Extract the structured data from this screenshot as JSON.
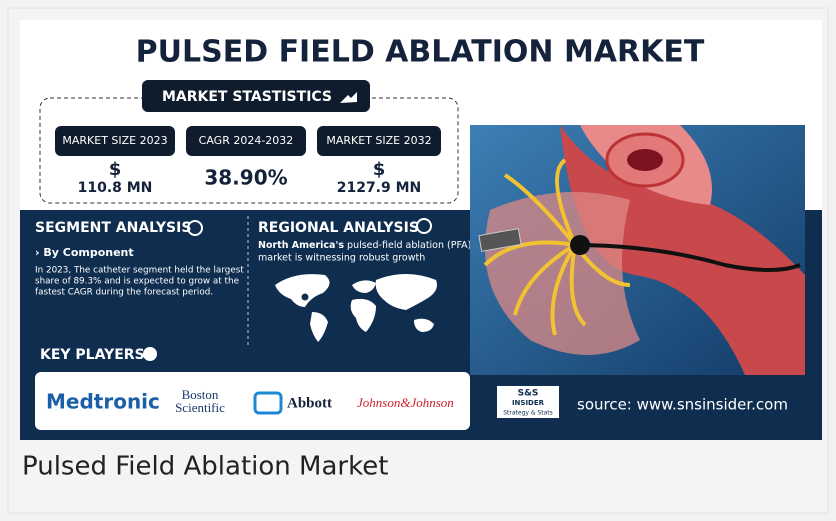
{
  "header": {
    "title": "PULSED FIELD ABLATION MARKET"
  },
  "stats": {
    "badge": "MARKET STASTISTICS",
    "items": [
      {
        "label": "MARKET SIZE 2023",
        "prefix": "$",
        "value": "110.8 MN"
      },
      {
        "label": "CAGR 2024-2032",
        "value": "38.90%"
      },
      {
        "label": "MARKET SIZE 2032",
        "prefix": "$",
        "value": "2127.9 MN"
      }
    ]
  },
  "segment": {
    "title": "SEGMENT ANALYSIS",
    "subtitle": "› By Component",
    "lines": [
      "In 2023, The catheter segment held the largest",
      "share of 89.3% and is expected to grow at the",
      "fastest CAGR during the forecast period."
    ]
  },
  "regional": {
    "title": "REGIONAL ANALYSIS",
    "bold": "North America's",
    "lines": [
      "pulsed-field ablation (PFA)",
      "market is witnessing robust growth"
    ]
  },
  "key_players": {
    "title": "KEY PLAYERS",
    "players": [
      "Medtronic",
      "Boston",
      "Scientific",
      "Abbott",
      "Johnson&Johnson"
    ]
  },
  "brand": {
    "mark": "S&S",
    "name": "INSIDER",
    "tagline": "Strategy & Stats"
  },
  "source": "source: www.snsinsider.com",
  "caption": "Pulsed Field Ablation Market"
}
